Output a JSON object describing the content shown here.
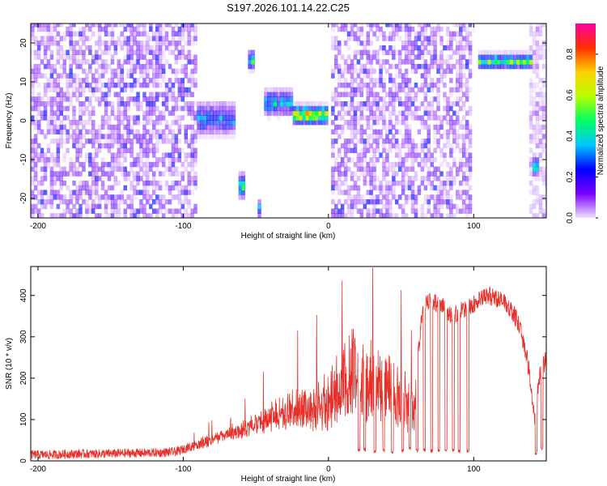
{
  "title": "S197.2026.101.14.22.C25",
  "chart_data": [
    {
      "type": "heatmap",
      "name": "spectrogram",
      "xlabel": "Height of straight line (km)",
      "ylabel": "Frequency (Hz)",
      "xlim": [
        -205,
        150
      ],
      "ylim": [
        -25,
        25
      ],
      "xticks": [
        -200,
        -100,
        0,
        100
      ],
      "yticks": [
        -20,
        -10,
        0,
        10,
        20
      ],
      "colorbar": {
        "label": "Normalized spectral amplitude",
        "range": [
          0,
          0.95
        ],
        "ticks": [
          0.0,
          0.2,
          0.4,
          0.6,
          0.8
        ],
        "tick_labels": [
          "0.0",
          "0.2",
          "0.4",
          "0.6",
          "0.8"
        ],
        "colormap": "rainbow",
        "colors": [
          "#f0e0ff",
          "#7a00ff",
          "#0000ff",
          "#00c8ff",
          "#00ff60",
          "#b8ff00",
          "#ffd000",
          "#ff3000",
          "#ff00a0"
        ]
      },
      "noise_regions": [
        {
          "x": [
            -205,
            -92
          ],
          "level": 0.12
        },
        {
          "x": [
            0,
            98
          ],
          "level": 0.12
        },
        {
          "x": [
            138,
            150
          ],
          "level": 0.06
        }
      ],
      "features": [
        {
          "x": [
            -92,
            -65
          ],
          "freq": 0,
          "width": 5,
          "amplitude": 0.35
        },
        {
          "x": [
            -63,
            -59
          ],
          "freq": -17.5,
          "width": 4,
          "amplitude": 0.45
        },
        {
          "x": [
            -57,
            -53
          ],
          "freq": 15,
          "width": 3,
          "amplitude": 0.5
        },
        {
          "x": [
            -51,
            -47
          ],
          "freq": -23,
          "width": 3,
          "amplitude": 0.4
        },
        {
          "x": [
            -46,
            -25
          ],
          "freq": 4,
          "width": 4,
          "amplitude": 0.4
        },
        {
          "x": [
            -25,
            -2
          ],
          "freq": 1,
          "width": 3,
          "amplitude": 0.75
        },
        {
          "x": [
            102,
            140
          ],
          "freq": 14.7,
          "width": 2.5,
          "amplitude": 0.55
        },
        {
          "x": [
            140,
            144
          ],
          "freq": -12.5,
          "width": 3,
          "amplitude": 0.45
        }
      ]
    },
    {
      "type": "line",
      "name": "snr",
      "xlabel": "Height of straight line (km)",
      "ylabel": "SNR (10 * v/v)",
      "xlim": [
        -205,
        150
      ],
      "ylim": [
        0,
        470
      ],
      "xticks": [
        -200,
        -100,
        0,
        100
      ],
      "yticks": [
        0,
        100,
        200,
        300,
        400
      ],
      "color": "#e8302a",
      "series": [
        {
          "name": "SNR",
          "x": [
            -205,
            -190,
            -175,
            -160,
            -145,
            -130,
            -115,
            -105,
            -95,
            -85,
            -75,
            -65,
            -55,
            -45,
            -35,
            -25,
            -15,
            -5,
            0,
            5,
            10,
            15,
            20,
            25,
            30,
            35,
            40,
            45,
            50,
            55,
            60,
            65,
            70,
            75,
            80,
            85,
            90,
            95,
            100,
            105,
            110,
            115,
            120,
            125,
            130,
            135,
            138,
            142,
            145,
            148,
            150
          ],
          "y": [
            15,
            15,
            17,
            17,
            18,
            19,
            20,
            22,
            35,
            50,
            65,
            80,
            100,
            120,
            150,
            170,
            180,
            200,
            220,
            260,
            300,
            330,
            320,
            310,
            300,
            290,
            270,
            250,
            230,
            210,
            190,
            380,
            390,
            380,
            370,
            350,
            360,
            370,
            380,
            390,
            400,
            395,
            385,
            370,
            340,
            280,
            220,
            100,
            200,
            230,
            250
          ]
        }
      ],
      "dropouts": [
        {
          "x": 21,
          "y": 20
        },
        {
          "x": 25,
          "y": 22
        },
        {
          "x": 32,
          "y": 18
        },
        {
          "x": 38,
          "y": 20
        },
        {
          "x": 44,
          "y": 18
        },
        {
          "x": 51,
          "y": 20
        },
        {
          "x": 56,
          "y": 25
        },
        {
          "x": 61,
          "y": 20
        },
        {
          "x": 66,
          "y": 22
        },
        {
          "x": 71,
          "y": 20
        },
        {
          "x": 76,
          "y": 18
        },
        {
          "x": 81,
          "y": 20
        },
        {
          "x": 86,
          "y": 22
        },
        {
          "x": 90,
          "y": 20
        },
        {
          "x": 96,
          "y": 20
        },
        {
          "x": 143,
          "y": 15
        },
        {
          "x": 147,
          "y": 25
        }
      ]
    }
  ]
}
